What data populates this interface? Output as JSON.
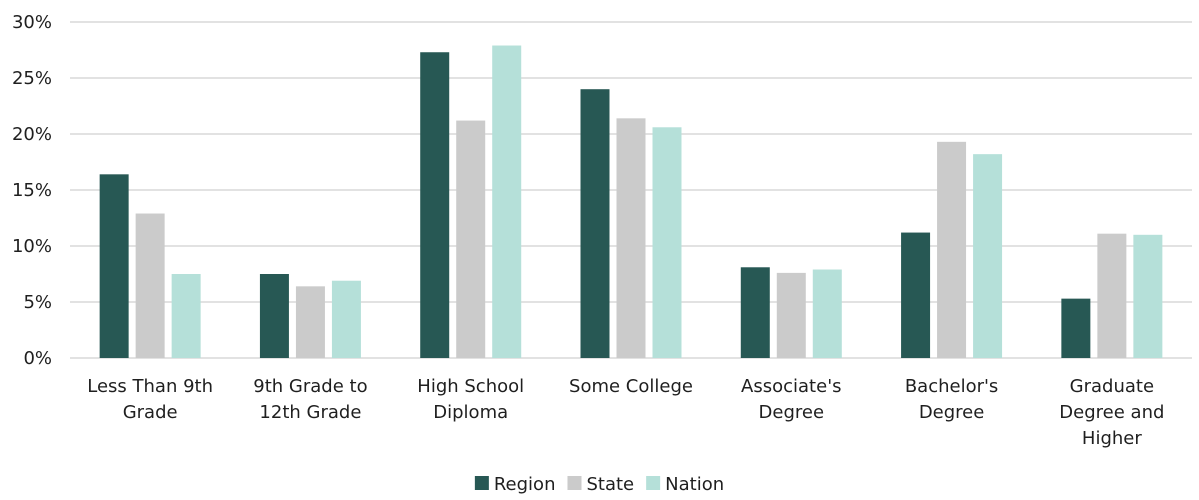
{
  "chart_data": {
    "type": "bar",
    "categories": [
      [
        "Less Than 9th",
        "Grade"
      ],
      [
        "9th Grade to",
        "12th Grade"
      ],
      [
        "High School",
        "Diploma"
      ],
      [
        "Some College"
      ],
      [
        "Associate's",
        "Degree"
      ],
      [
        "Bachelor's",
        "Degree"
      ],
      [
        "Graduate",
        "Degree and",
        "Higher"
      ]
    ],
    "series": [
      {
        "name": "Region",
        "color": "#275854",
        "values": [
          16.4,
          7.5,
          27.3,
          24.0,
          8.1,
          11.2,
          5.3
        ]
      },
      {
        "name": "State",
        "color": "#cbcbcb",
        "values": [
          12.9,
          6.4,
          21.2,
          21.4,
          7.6,
          19.3,
          11.1
        ]
      },
      {
        "name": "Nation",
        "color": "#b5e0d9",
        "values": [
          7.5,
          6.9,
          27.9,
          20.6,
          7.9,
          18.2,
          11.0
        ]
      }
    ],
    "ylim": [
      0,
      30
    ],
    "yticks": [
      "0%",
      "5%",
      "10%",
      "15%",
      "20%",
      "25%",
      "30%"
    ],
    "ytick_values": [
      0,
      5,
      10,
      15,
      20,
      25,
      30
    ],
    "grid": true,
    "legend_position": "bottom"
  }
}
